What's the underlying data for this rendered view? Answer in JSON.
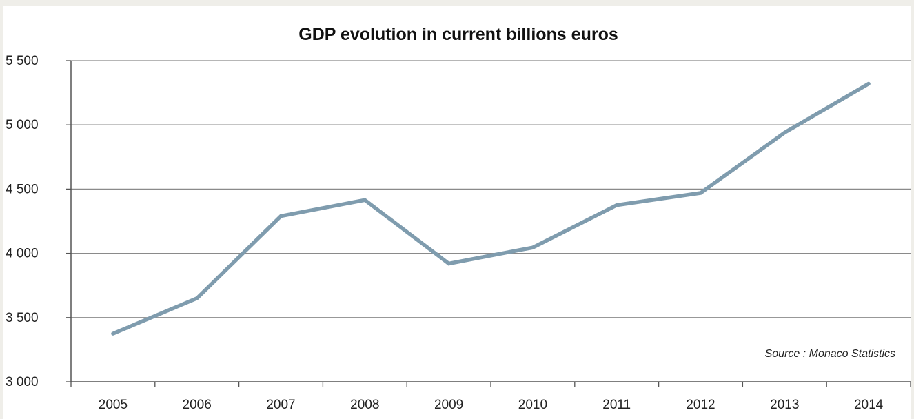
{
  "chart_data": {
    "type": "line",
    "title": "GDP evolution in current billions euros",
    "xlabel": "",
    "ylabel": "",
    "categories": [
      "2005",
      "2006",
      "2007",
      "2008",
      "2009",
      "2010",
      "2011",
      "2012",
      "2013",
      "2014"
    ],
    "series": [
      {
        "values": [
          3375,
          3650,
          4290,
          4415,
          3920,
          4045,
          4375,
          4470,
          4940,
          5320
        ],
        "color": "#7f9cae"
      }
    ],
    "ylim": [
      3000,
      5500
    ],
    "yticks": [
      3000,
      3500,
      4000,
      4500,
      5000,
      5500
    ],
    "ytick_labels": [
      "3 000",
      "3 500",
      "4 000",
      "4 500",
      "5 000",
      "5 500"
    ],
    "grid": "horizontal",
    "legend": "none",
    "annotation": "Source : Monaco Statistics"
  }
}
